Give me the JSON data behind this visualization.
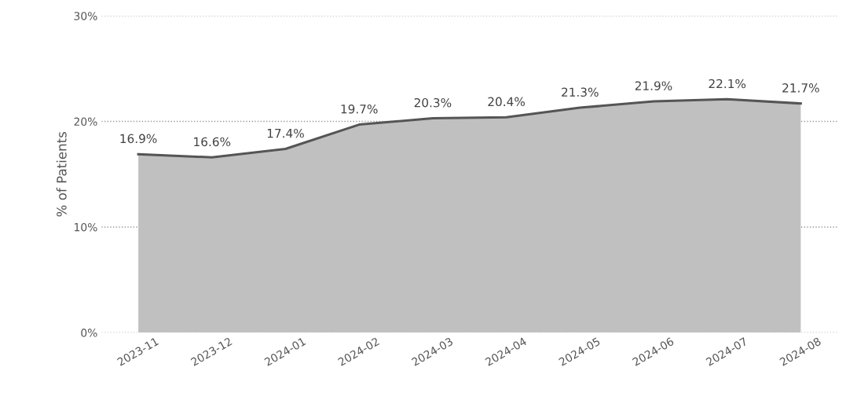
{
  "chart_data": {
    "type": "area",
    "ylabel": "% of Patients",
    "categories": [
      "2023-11",
      "2023-12",
      "2024-01",
      "2024-02",
      "2024-03",
      "2024-04",
      "2024-05",
      "2024-06",
      "2024-07",
      "2024-08"
    ],
    "series": [
      {
        "color": "#c0c0c0",
        "values": [
          16.9,
          16.6,
          17.4,
          19.7,
          20.3,
          20.4,
          21.3,
          21.9,
          22.1,
          21.7
        ],
        "value_labels": [
          "16.9%",
          "16.6%",
          "17.4%",
          "19.7%",
          "20.3%",
          "20.4%",
          "21.3%",
          "21.9%",
          "22.1%",
          "21.7%"
        ]
      }
    ],
    "ylim": [
      0,
      30
    ],
    "yticks": [
      {
        "value": 0,
        "label": "0%"
      },
      {
        "value": 10,
        "label": "10%"
      },
      {
        "value": 20,
        "label": "20%"
      },
      {
        "value": 30,
        "label": "30%"
      }
    ],
    "grid": "y"
  }
}
